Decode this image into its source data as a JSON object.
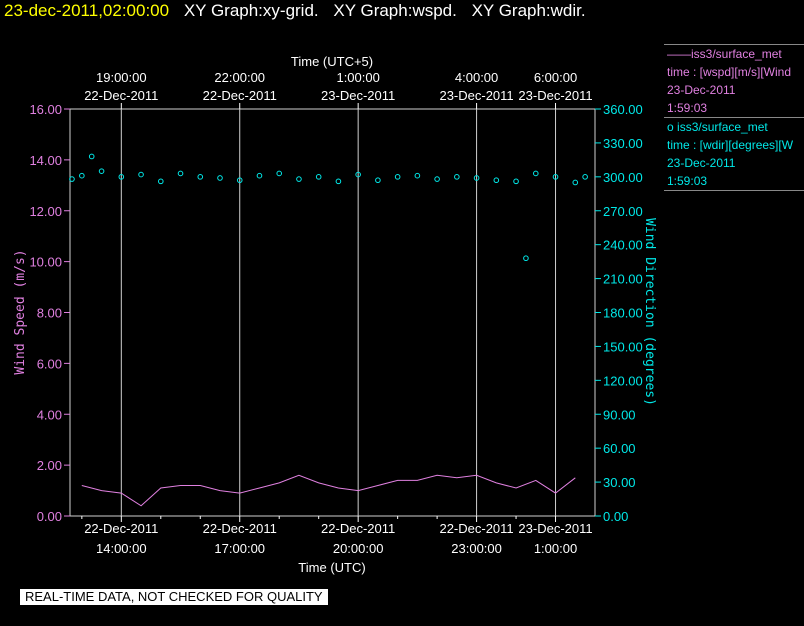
{
  "header": {
    "timestamp": "23-dec-2011,02:00:00",
    "graphs": [
      "XY Graph:xy-grid.",
      "XY Graph:wspd.",
      "XY Graph:wdir."
    ]
  },
  "colors": {
    "wspd": "#e080e0",
    "wdir": "#00e8e8",
    "timestamp": "#ffff00",
    "grid": "#d0d0d0"
  },
  "legend": [
    {
      "symbol": "——",
      "source": "iss3/surface_met",
      "var_line": "time : [wspd][m/s][Wind",
      "date": "23-Dec-2011",
      "time": "1:59:03"
    },
    {
      "symbol": "o",
      "source": "iss3/surface_met",
      "var_line": "time : [wdir][degrees][W",
      "date": "23-Dec-2011",
      "time": "1:59:03"
    }
  ],
  "notice": "REAL-TIME DATA, NOT CHECKED FOR QUALITY",
  "chart_data": {
    "type": "line",
    "xlabel_bottom": "Time (UTC)",
    "xlabel_top": "Time (UTC+5)",
    "ylabel_left": "Wind Speed (m/s)",
    "ylabel_right": "Wind Direction (degrees)",
    "x_range_hours_utc": [
      "22-Dec-2011 12:42",
      "23-Dec-2011 02:00"
    ],
    "bottom_ticks": [
      {
        "date": "22-Dec-2011",
        "time": "14:00:00"
      },
      {
        "date": "22-Dec-2011",
        "time": "17:00:00"
      },
      {
        "date": "22-Dec-2011",
        "time": "20:00:00"
      },
      {
        "date": "22-Dec-2011",
        "time": "23:00:00"
      },
      {
        "date": "23-Dec-2011",
        "time": "1:00:00"
      }
    ],
    "top_ticks": [
      {
        "time": "19:00:00",
        "date": "22-Dec-2011"
      },
      {
        "time": "22:00:00",
        "date": "22-Dec-2011"
      },
      {
        "time": "1:00:00",
        "date": "23-Dec-2011"
      },
      {
        "time": "4:00:00",
        "date": "23-Dec-2011"
      },
      {
        "time": "6:00:00",
        "date": "23-Dec-2011"
      }
    ],
    "ylim_left": [
      0,
      16
    ],
    "ylim_right": [
      0,
      360
    ],
    "left_ticks": [
      "0.00",
      "2.00",
      "4.00",
      "6.00",
      "8.00",
      "10.00",
      "12.00",
      "14.00",
      "16.00"
    ],
    "right_ticks": [
      "0.00",
      "30.00",
      "60.00",
      "90.00",
      "120.00",
      "150.00",
      "180.00",
      "210.00",
      "240.00",
      "270.00",
      "300.00",
      "330.00",
      "360.00"
    ],
    "grid": "vertical lines at bottom ticks",
    "series": [
      {
        "name": "wspd",
        "x_utc": [
          "13:00",
          "13:30",
          "14:00",
          "14:30",
          "15:00",
          "15:30",
          "16:00",
          "16:30",
          "17:00",
          "17:30",
          "18:00",
          "18:30",
          "19:00",
          "19:30",
          "20:00",
          "20:30",
          "21:00",
          "21:30",
          "22:00",
          "22:30",
          "23:00",
          "23:30",
          "00:00",
          "00:30",
          "01:00",
          "01:30"
        ],
        "values": [
          1.2,
          1.0,
          0.9,
          0.4,
          1.1,
          1.2,
          1.2,
          1.0,
          0.9,
          1.1,
          1.3,
          1.6,
          1.3,
          1.1,
          1.0,
          1.2,
          1.4,
          1.4,
          1.6,
          1.5,
          1.6,
          1.3,
          1.1,
          1.4,
          0.9,
          1.5
        ]
      },
      {
        "name": "wdir",
        "x_utc": [
          "12:45",
          "13:00",
          "13:15",
          "13:30",
          "14:00",
          "14:30",
          "15:00",
          "15:30",
          "16:00",
          "16:30",
          "17:00",
          "17:30",
          "18:00",
          "18:30",
          "19:00",
          "19:30",
          "20:00",
          "20:30",
          "21:00",
          "21:30",
          "22:00",
          "22:30",
          "23:00",
          "23:30",
          "00:00",
          "00:15",
          "00:30",
          "01:00",
          "01:30",
          "01:45"
        ],
        "values": [
          298,
          301,
          318,
          305,
          300,
          302,
          296,
          303,
          300,
          299,
          297,
          301,
          303,
          298,
          300,
          296,
          302,
          297,
          300,
          301,
          298,
          300,
          299,
          297,
          296,
          228,
          303,
          300,
          295,
          300
        ]
      }
    ]
  }
}
